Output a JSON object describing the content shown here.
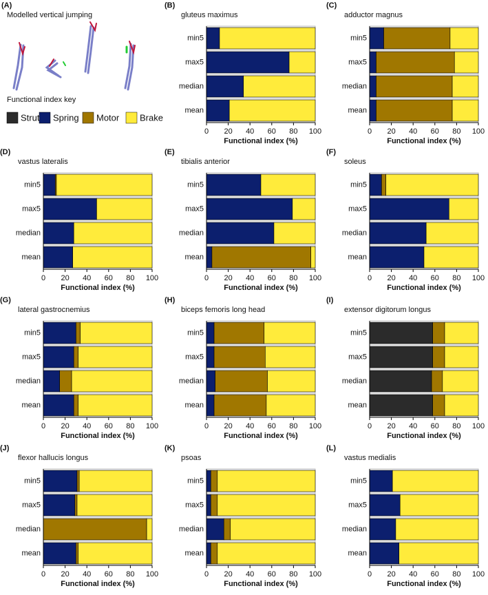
{
  "figure": {
    "panel_label": "(A)",
    "title": "Modelled vertical jumping",
    "key_title": "Functional index key",
    "legend": [
      {
        "name": "Strut",
        "color": "#2b2b2b"
      },
      {
        "name": "Spring",
        "color": "#0c1f6e"
      },
      {
        "name": "Motor",
        "color": "#a07700"
      },
      {
        "name": "Brake",
        "color": "#ffeb3b"
      }
    ]
  },
  "chart_data": [
    {
      "type": "stacked-barh",
      "panel_label": "(B)",
      "title": "gluteus maximus",
      "categories": [
        "min5",
        "max5",
        "median",
        "mean"
      ],
      "xlabel": "Functional index (%)",
      "xlim": [
        0,
        100
      ],
      "xticks": [
        0,
        20,
        40,
        60,
        80,
        100
      ],
      "series": [
        {
          "values": [
            0,
            0,
            0,
            0
          ]
        },
        {
          "values": [
            12,
            76,
            34,
            21
          ]
        },
        {
          "values": [
            0,
            0,
            0,
            0
          ]
        },
        {
          "values": [
            88,
            24,
            66,
            79
          ]
        }
      ]
    },
    {
      "type": "stacked-barh",
      "panel_label": "(C)",
      "title": "adductor magnus",
      "categories": [
        "min5",
        "max5",
        "median",
        "mean"
      ],
      "xlabel": "Functional index (%)",
      "xlim": [
        0,
        100
      ],
      "xticks": [
        0,
        20,
        40,
        60,
        80,
        100
      ],
      "series": [
        {
          "values": [
            0,
            0,
            0,
            0
          ]
        },
        {
          "values": [
            13,
            6,
            6,
            6
          ]
        },
        {
          "values": [
            61,
            72,
            70,
            70
          ]
        },
        {
          "values": [
            26,
            22,
            24,
            24
          ]
        }
      ]
    },
    {
      "type": "stacked-barh",
      "panel_label": "(D)",
      "title": "vastus lateralis",
      "categories": [
        "min5",
        "max5",
        "median",
        "mean"
      ],
      "xlabel": "Functional index (%)",
      "xlim": [
        0,
        100
      ],
      "xticks": [
        0,
        20,
        40,
        60,
        80,
        100
      ],
      "series": [
        {
          "values": [
            0,
            0,
            0,
            0
          ]
        },
        {
          "values": [
            11,
            49,
            28,
            27
          ]
        },
        {
          "values": [
            1,
            0,
            0,
            0
          ]
        },
        {
          "values": [
            88,
            51,
            72,
            73
          ]
        }
      ]
    },
    {
      "type": "stacked-barh",
      "panel_label": "(E)",
      "title": "tibialis anterior",
      "categories": [
        "min5",
        "max5",
        "median",
        "mean"
      ],
      "xlabel": "Functional index (%)",
      "xlim": [
        0,
        100
      ],
      "xticks": [
        0,
        20,
        40,
        60,
        80,
        100
      ],
      "series": [
        {
          "values": [
            0,
            0,
            0,
            0
          ]
        },
        {
          "values": [
            50,
            79,
            62,
            5
          ]
        },
        {
          "values": [
            0,
            0,
            0,
            91
          ]
        },
        {
          "values": [
            50,
            21,
            38,
            4
          ]
        }
      ]
    },
    {
      "type": "stacked-barh",
      "panel_label": "(F)",
      "title": "soleus",
      "categories": [
        "min5",
        "max5",
        "median",
        "mean"
      ],
      "xlabel": "Functional index (%)",
      "xlim": [
        0,
        100
      ],
      "xticks": [
        0,
        20,
        40,
        60,
        80,
        100
      ],
      "series": [
        {
          "values": [
            0,
            0,
            0,
            0
          ]
        },
        {
          "values": [
            11,
            73,
            52,
            50
          ]
        },
        {
          "values": [
            4,
            0,
            0,
            0
          ]
        },
        {
          "values": [
            85,
            27,
            48,
            50
          ]
        }
      ]
    },
    {
      "type": "stacked-barh",
      "panel_label": "(G)",
      "title": "lateral gastrocnemius",
      "categories": [
        "min5",
        "max5",
        "median",
        "mean"
      ],
      "xlabel": "Functional index (%)",
      "xlim": [
        0,
        100
      ],
      "xticks": [
        0,
        20,
        40,
        60,
        80,
        100
      ],
      "series": [
        {
          "values": [
            0,
            0,
            0,
            0
          ]
        },
        {
          "values": [
            30,
            28,
            15,
            28
          ]
        },
        {
          "values": [
            4,
            4,
            11,
            4
          ]
        },
        {
          "values": [
            66,
            68,
            74,
            68
          ]
        }
      ]
    },
    {
      "type": "stacked-barh",
      "panel_label": "(H)",
      "title": "biceps femoris long head",
      "categories": [
        "min5",
        "max5",
        "median",
        "mean"
      ],
      "xlabel": "Functional index (%)",
      "xlim": [
        0,
        100
      ],
      "xticks": [
        0,
        20,
        40,
        60,
        80,
        100
      ],
      "series": [
        {
          "values": [
            0,
            0,
            0,
            0
          ]
        },
        {
          "values": [
            7,
            7,
            8,
            7
          ]
        },
        {
          "values": [
            46,
            47,
            48,
            48
          ]
        },
        {
          "values": [
            47,
            46,
            44,
            45
          ]
        }
      ]
    },
    {
      "type": "stacked-barh",
      "panel_label": "(I)",
      "title": "extensor digitorum longus",
      "categories": [
        "min5",
        "max5",
        "median",
        "mean"
      ],
      "xlabel": "Functional index (%)",
      "xlim": [
        0,
        100
      ],
      "xticks": [
        0,
        20,
        40,
        60,
        80,
        100
      ],
      "series": [
        {
          "values": [
            58,
            58,
            57,
            58
          ]
        },
        {
          "values": [
            0,
            0,
            0,
            0
          ]
        },
        {
          "values": [
            11,
            11,
            10,
            11
          ]
        },
        {
          "values": [
            31,
            31,
            33,
            31
          ]
        }
      ]
    },
    {
      "type": "stacked-barh",
      "panel_label": "(J)",
      "title": "flexor hallucis longus",
      "categories": [
        "min5",
        "max5",
        "median",
        "mean"
      ],
      "xlabel": "Functional index (%)",
      "xlim": [
        0,
        100
      ],
      "xticks": [
        0,
        20,
        40,
        60,
        80,
        100
      ],
      "series": [
        {
          "values": [
            0,
            0,
            0,
            0
          ]
        },
        {
          "values": [
            31,
            29,
            0,
            30
          ]
        },
        {
          "values": [
            2,
            2,
            95,
            2
          ]
        },
        {
          "values": [
            67,
            69,
            5,
            68
          ]
        }
      ]
    },
    {
      "type": "stacked-barh",
      "panel_label": "(K)",
      "title": "psoas",
      "categories": [
        "min5",
        "max5",
        "median",
        "mean"
      ],
      "xlabel": "Functional index (%)",
      "xlim": [
        0,
        100
      ],
      "xticks": [
        0,
        20,
        40,
        60,
        80,
        100
      ],
      "series": [
        {
          "values": [
            0,
            0,
            0,
            0
          ]
        },
        {
          "values": [
            4,
            4,
            16,
            4
          ]
        },
        {
          "values": [
            6,
            6,
            6,
            6
          ]
        },
        {
          "values": [
            90,
            90,
            78,
            90
          ]
        }
      ]
    },
    {
      "type": "stacked-barh",
      "panel_label": "(L)",
      "title": "vastus medialis",
      "categories": [
        "min5",
        "max5",
        "median",
        "mean"
      ],
      "xlabel": "Functional index (%)",
      "xlim": [
        0,
        100
      ],
      "xticks": [
        0,
        20,
        40,
        60,
        80,
        100
      ],
      "series": [
        {
          "values": [
            0,
            0,
            0,
            0
          ]
        },
        {
          "values": [
            21,
            28,
            24,
            27
          ]
        },
        {
          "values": [
            0,
            0,
            0,
            0
          ]
        },
        {
          "values": [
            79,
            72,
            76,
            73
          ]
        }
      ]
    }
  ]
}
